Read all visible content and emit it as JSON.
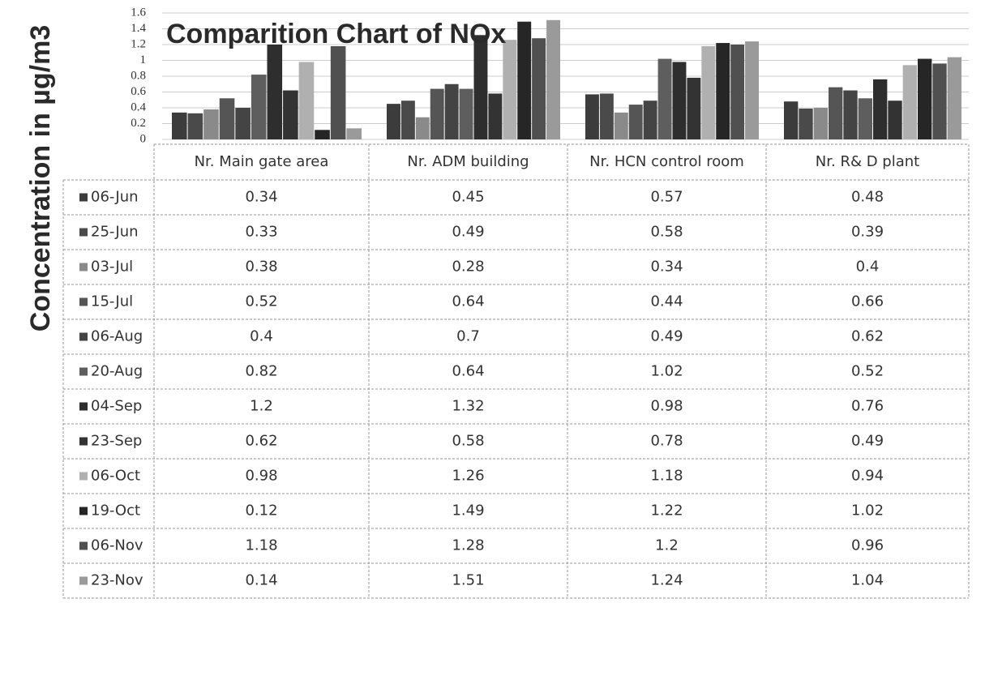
{
  "chart_data": {
    "type": "bar",
    "title": "Comparition Chart of NOx",
    "y_label": "Concentration in µg/m3",
    "categories": [
      "Nr. Main gate area",
      "Nr. ADM building",
      "Nr. HCN control room",
      "Nr. R& D plant"
    ],
    "series": [
      {
        "name": "06-Jun",
        "color": "#3c3c3c",
        "values": [
          0.34,
          0.45,
          0.57,
          0.48
        ]
      },
      {
        "name": "25-Jun",
        "color": "#4a4a4a",
        "values": [
          0.33,
          0.49,
          0.58,
          0.39
        ]
      },
      {
        "name": "03-Jul",
        "color": "#8a8a8a",
        "values": [
          0.38,
          0.28,
          0.34,
          0.4
        ]
      },
      {
        "name": "15-Jul",
        "color": "#555555",
        "values": [
          0.52,
          0.64,
          0.44,
          0.66
        ]
      },
      {
        "name": "06-Aug",
        "color": "#444444",
        "values": [
          0.4,
          0.7,
          0.49,
          0.62
        ]
      },
      {
        "name": "20-Aug",
        "color": "#5e5e5e",
        "values": [
          0.82,
          0.64,
          1.02,
          0.52
        ]
      },
      {
        "name": "04-Sep",
        "color": "#2e2e2e",
        "values": [
          1.2,
          1.32,
          0.98,
          0.76
        ]
      },
      {
        "name": "23-Sep",
        "color": "#333333",
        "values": [
          0.62,
          0.58,
          0.78,
          0.49
        ]
      },
      {
        "name": "06-Oct",
        "color": "#b0b0b0",
        "values": [
          0.98,
          1.26,
          1.18,
          0.94
        ]
      },
      {
        "name": "19-Oct",
        "color": "#262626",
        "values": [
          0.12,
          1.49,
          1.22,
          1.02
        ]
      },
      {
        "name": "06-Nov",
        "color": "#505050",
        "values": [
          1.18,
          1.28,
          1.2,
          0.96
        ]
      },
      {
        "name": "23-Nov",
        "color": "#9a9a9a",
        "values": [
          0.14,
          1.51,
          1.24,
          1.04
        ]
      }
    ],
    "ylim": [
      0,
      1.6
    ],
    "yticks": [
      0,
      0.2,
      0.4,
      0.6,
      0.8,
      1,
      1.2,
      1.4,
      1.6
    ],
    "grid": true
  }
}
